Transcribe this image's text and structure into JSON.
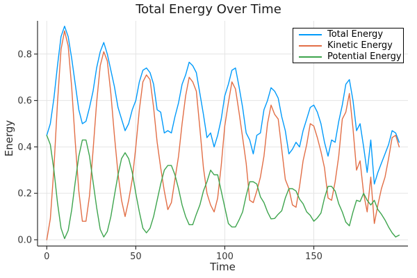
{
  "chart_data": {
    "type": "line",
    "title": "Total Energy Over Time",
    "xlabel": "Time",
    "ylabel": "Energy",
    "xlim": [
      -5.2,
      202.9
    ],
    "ylim": [
      -0.027,
      0.943
    ],
    "xticks": [
      0,
      50,
      100,
      150
    ],
    "yticks": [
      0.0,
      0.2,
      0.4,
      0.6,
      0.8
    ],
    "grid": true,
    "legend_position": "top-right",
    "background": "#ffffff",
    "colors": {
      "grid": "#e4e4e4",
      "spine": "#2f2f2f",
      "tick_text": "#363636",
      "title_text": "#1c1c1c"
    },
    "x": [
      0,
      2,
      4,
      6,
      8,
      10,
      12,
      14,
      16,
      18,
      20,
      22,
      24,
      26,
      28,
      30,
      32,
      34,
      36,
      38,
      40,
      42,
      44,
      46,
      48,
      50,
      52,
      54,
      56,
      58,
      60,
      62,
      64,
      66,
      68,
      70,
      72,
      74,
      76,
      78,
      80,
      82,
      84,
      86,
      88,
      90,
      92,
      94,
      96,
      98,
      100,
      102,
      104,
      106,
      108,
      110,
      112,
      114,
      116,
      118,
      120,
      122,
      124,
      126,
      128,
      130,
      132,
      134,
      136,
      138,
      140,
      142,
      144,
      146,
      148,
      150,
      152,
      154,
      156,
      158,
      160,
      162,
      164,
      166,
      168,
      170,
      172,
      174,
      176,
      178,
      180,
      182,
      184,
      186,
      188,
      190,
      192,
      194,
      196,
      198
    ],
    "series": [
      {
        "id": "total-energy",
        "name": "Total Energy",
        "color": "#009AFA",
        "values": [
          0.45,
          0.5,
          0.61,
          0.75,
          0.875,
          0.92,
          0.875,
          0.78,
          0.67,
          0.56,
          0.5,
          0.51,
          0.57,
          0.64,
          0.74,
          0.81,
          0.85,
          0.8,
          0.73,
          0.66,
          0.57,
          0.52,
          0.47,
          0.5,
          0.56,
          0.6,
          0.68,
          0.73,
          0.74,
          0.72,
          0.67,
          0.56,
          0.55,
          0.46,
          0.47,
          0.46,
          0.53,
          0.59,
          0.67,
          0.71,
          0.765,
          0.75,
          0.72,
          0.63,
          0.54,
          0.44,
          0.46,
          0.4,
          0.45,
          0.52,
          0.62,
          0.67,
          0.73,
          0.74,
          0.66,
          0.57,
          0.46,
          0.43,
          0.37,
          0.45,
          0.46,
          0.56,
          0.6,
          0.655,
          0.64,
          0.61,
          0.53,
          0.47,
          0.37,
          0.39,
          0.42,
          0.4,
          0.47,
          0.52,
          0.57,
          0.58,
          0.55,
          0.5,
          0.42,
          0.36,
          0.43,
          0.42,
          0.51,
          0.58,
          0.67,
          0.69,
          0.6,
          0.47,
          0.5,
          0.4,
          0.29,
          0.43,
          0.24,
          0.29,
          0.33,
          0.37,
          0.41,
          0.47,
          0.46,
          0.42
        ]
      },
      {
        "id": "kinetic-energy",
        "name": "Kinetic Energy",
        "color": "#E26E46",
        "values": [
          0.0,
          0.09,
          0.31,
          0.59,
          0.82,
          0.9,
          0.835,
          0.655,
          0.42,
          0.21,
          0.08,
          0.08,
          0.19,
          0.385,
          0.59,
          0.75,
          0.81,
          0.77,
          0.63,
          0.45,
          0.285,
          0.17,
          0.1,
          0.17,
          0.26,
          0.4,
          0.56,
          0.68,
          0.71,
          0.69,
          0.57,
          0.42,
          0.31,
          0.21,
          0.13,
          0.16,
          0.26,
          0.36,
          0.5,
          0.62,
          0.7,
          0.68,
          0.64,
          0.48,
          0.31,
          0.2,
          0.15,
          0.12,
          0.18,
          0.32,
          0.49,
          0.59,
          0.68,
          0.65,
          0.55,
          0.44,
          0.33,
          0.17,
          0.16,
          0.21,
          0.27,
          0.36,
          0.5,
          0.58,
          0.54,
          0.52,
          0.39,
          0.26,
          0.22,
          0.15,
          0.14,
          0.23,
          0.34,
          0.41,
          0.5,
          0.49,
          0.44,
          0.38,
          0.31,
          0.18,
          0.17,
          0.25,
          0.36,
          0.52,
          0.55,
          0.63,
          0.48,
          0.3,
          0.34,
          0.2,
          0.12,
          0.27,
          0.07,
          0.15,
          0.22,
          0.27,
          0.35,
          0.44,
          0.45,
          0.4
        ]
      },
      {
        "id": "potential-energy",
        "name": "Potential Energy",
        "color": "#3DA44D",
        "values": [
          0.45,
          0.41,
          0.3,
          0.16,
          0.05,
          0.005,
          0.04,
          0.13,
          0.25,
          0.36,
          0.43,
          0.43,
          0.36,
          0.25,
          0.14,
          0.045,
          0.012,
          0.036,
          0.1,
          0.19,
          0.28,
          0.35,
          0.375,
          0.35,
          0.29,
          0.2,
          0.12,
          0.05,
          0.03,
          0.05,
          0.1,
          0.17,
          0.24,
          0.3,
          0.32,
          0.32,
          0.28,
          0.22,
          0.15,
          0.1,
          0.065,
          0.065,
          0.11,
          0.15,
          0.21,
          0.25,
          0.3,
          0.28,
          0.28,
          0.21,
          0.14,
          0.07,
          0.055,
          0.055,
          0.085,
          0.12,
          0.19,
          0.25,
          0.25,
          0.24,
          0.185,
          0.16,
          0.12,
          0.09,
          0.092,
          0.11,
          0.125,
          0.18,
          0.22,
          0.22,
          0.21,
          0.175,
          0.155,
          0.12,
          0.105,
          0.08,
          0.094,
          0.115,
          0.18,
          0.23,
          0.23,
          0.21,
          0.155,
          0.12,
          0.076,
          0.06,
          0.12,
          0.17,
          0.165,
          0.2,
          0.17,
          0.15,
          0.17,
          0.13,
          0.11,
          0.085,
          0.055,
          0.03,
          0.012,
          0.02
        ]
      }
    ]
  }
}
